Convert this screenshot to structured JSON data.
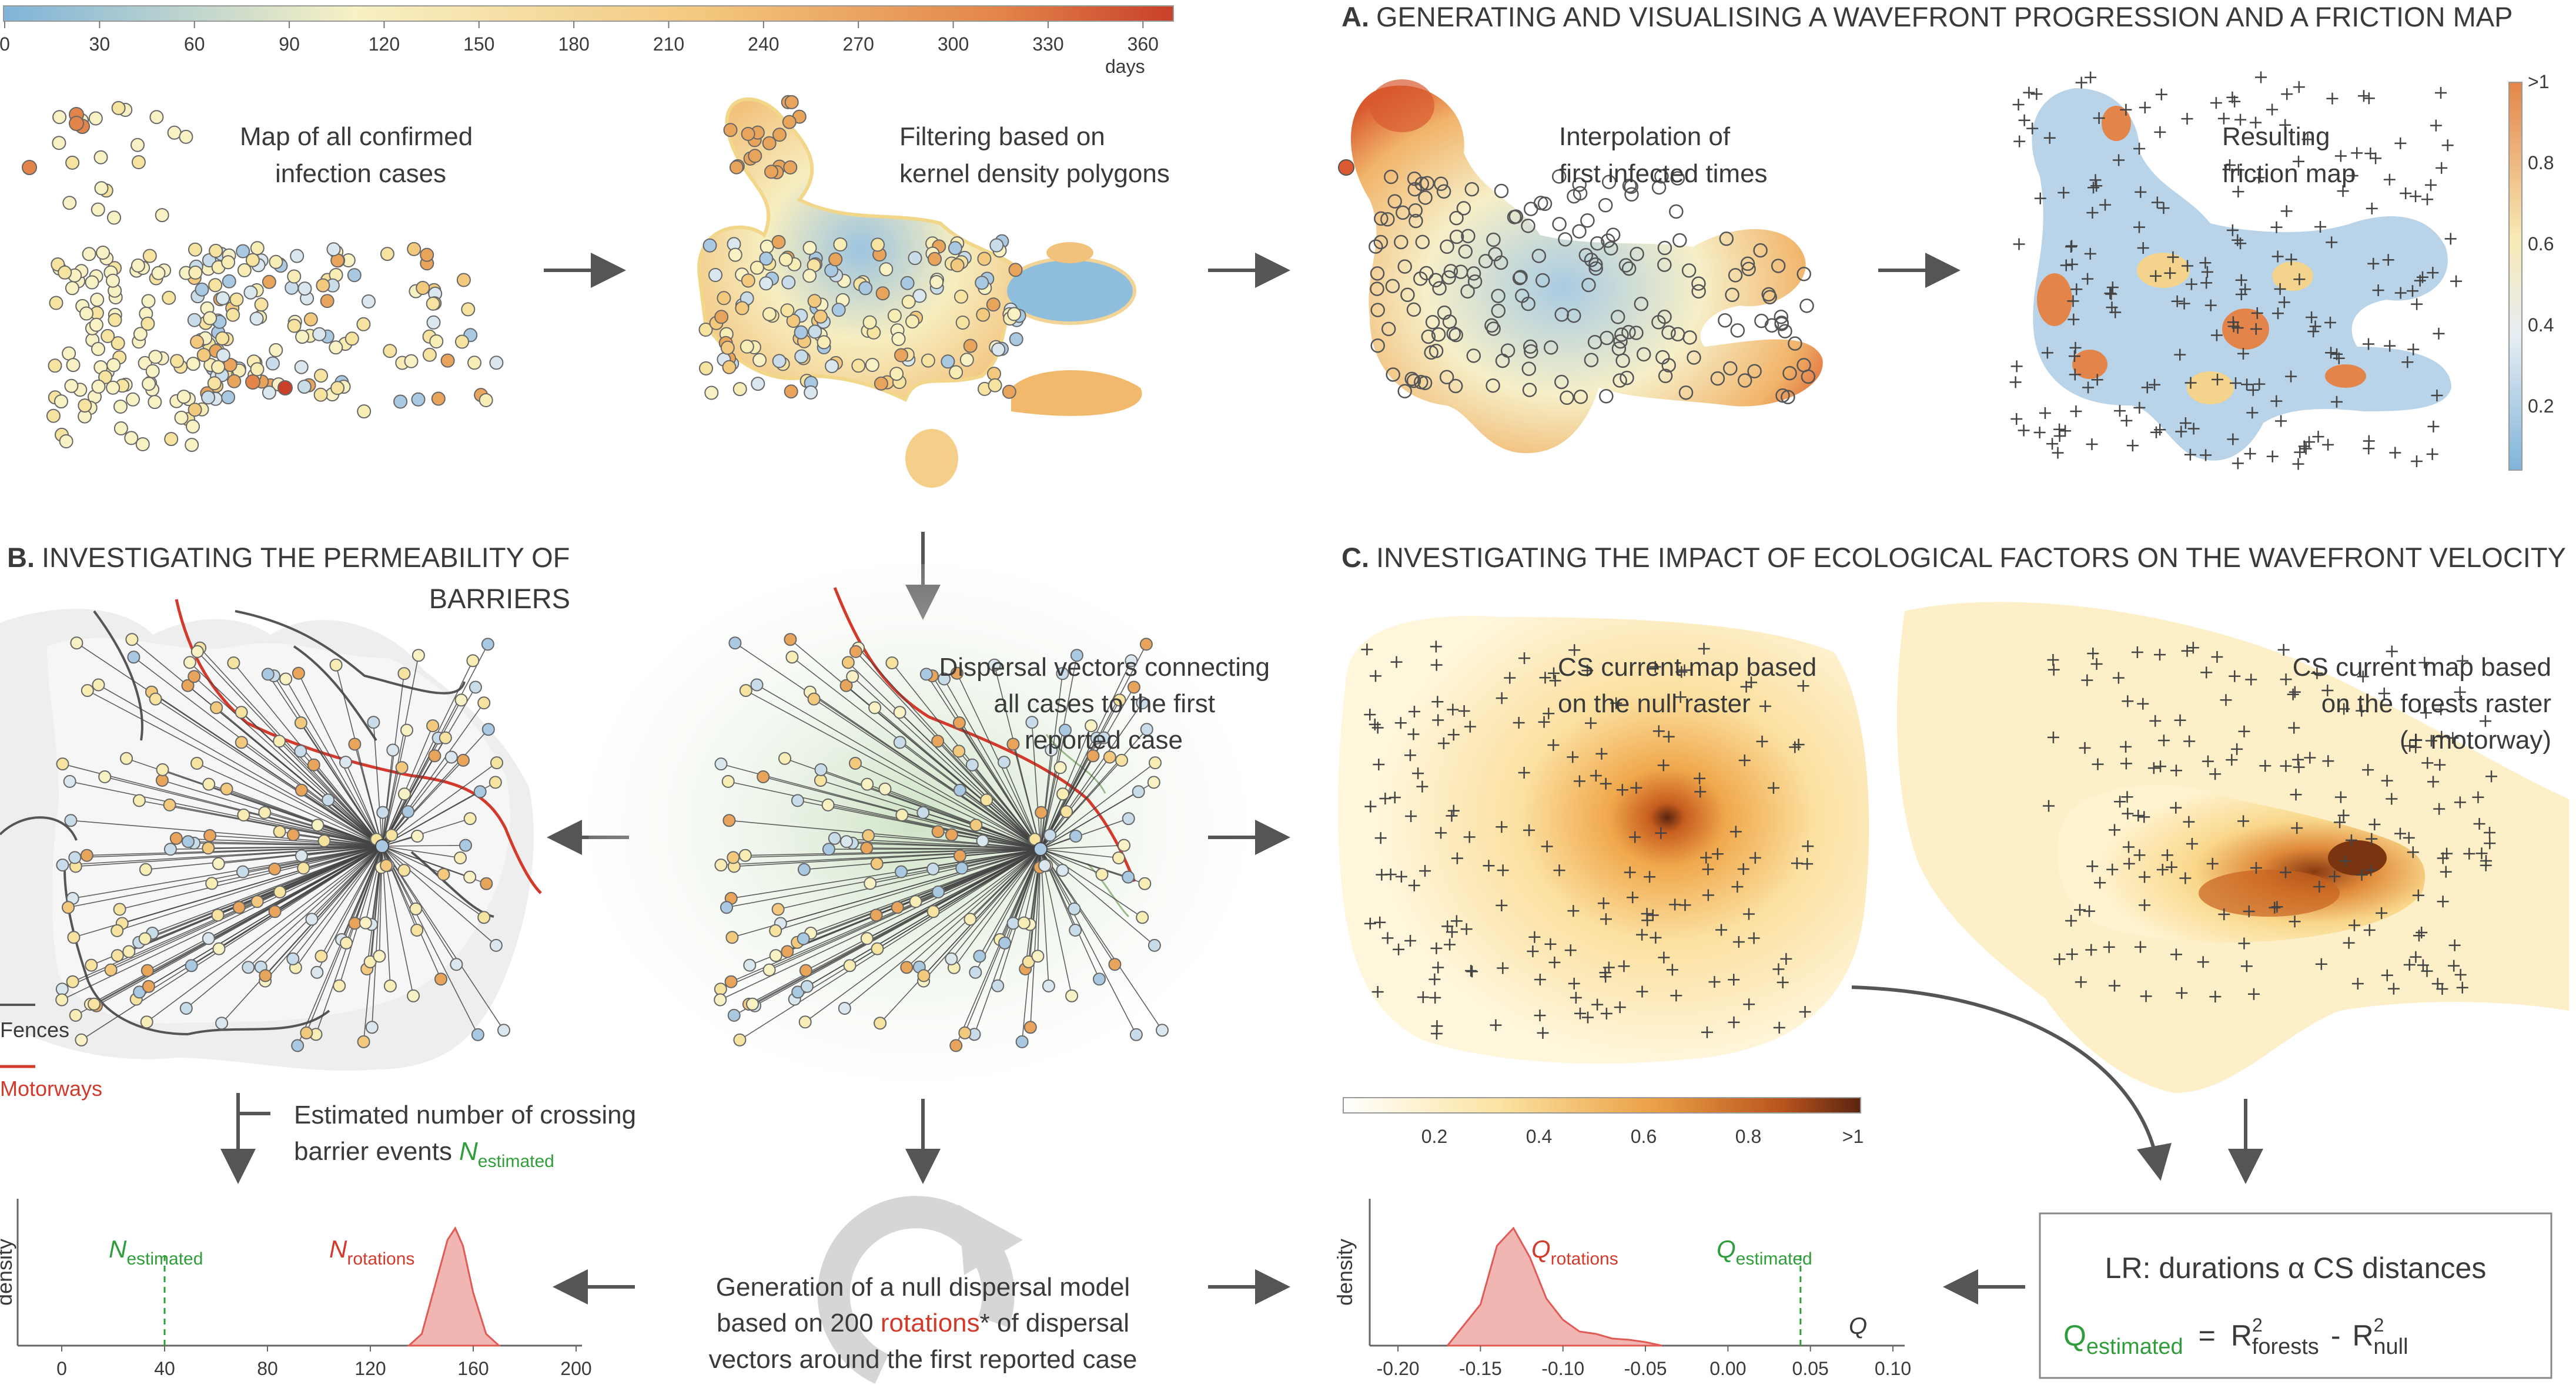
{
  "colorbar_days": {
    "ticks": [
      "0",
      "30",
      "60",
      "90",
      "120",
      "150",
      "180",
      "210",
      "240",
      "270",
      "300",
      "330",
      "360"
    ],
    "unit": "days",
    "colors": {
      "low": "#7fb4d9",
      "mid": "#f7f1c4",
      "high": "#c8402a"
    }
  },
  "panelA": {
    "title_prefix": "A.",
    "title": "GENERATING AND VISUALISING A WAVEFRONT PROGRESSION AND A FRICTION MAP",
    "map1_label": [
      "Map of all confirmed",
      "infection cases"
    ],
    "map2_label": [
      "Filtering based on",
      "kernel density polygons"
    ],
    "map3_label": [
      "Interpolation of",
      "first infected times"
    ],
    "map4_label": [
      "Resulting",
      "friction map"
    ],
    "friction_ticks": [
      ">1",
      "0.8",
      "0.6",
      "0.4",
      "0.2"
    ]
  },
  "panelB": {
    "title_prefix": "B.",
    "title_line1": "INVESTIGATING THE PERMEABILITY OF",
    "title_line2": "BARRIERS",
    "legend_fences": "Fences",
    "legend_motorways": "Motorways",
    "dispersal_label": [
      "Dispersal vectors connecting",
      "all cases to the first",
      "reported case"
    ],
    "crossing_label_line1": "Estimated number of crossing",
    "crossing_label_line2": "barrier events",
    "n_symbol": "N",
    "n_estimated_sub": "estimated",
    "n_rotations_sub": "rotations",
    "density_axis": "density",
    "chart_x_ticks": [
      "0",
      "40",
      "80",
      "120",
      "160",
      "200"
    ],
    "null_model_line1": "Generation of a null dispersal model",
    "null_model_line2_a": "based on 200 ",
    "null_model_line2_b": "rotations",
    "null_model_line2_c": "* of dispersal",
    "null_model_line3": "vectors around the first reported case"
  },
  "panelC": {
    "title_prefix": "C.",
    "title": "INVESTIGATING THE IMPACT OF ECOLOGICAL FACTORS ON THE WAVEFRONT VELOCITY",
    "cs_null_label": [
      "CS current map based",
      "on the null raster"
    ],
    "cs_forest_label": [
      "CS current map based",
      "on the forests raster",
      "(+ motorway)"
    ],
    "cs_ticks": [
      "0.2",
      "0.4",
      "0.6",
      "0.8",
      ">1"
    ],
    "q_symbol": "Q",
    "q_rotations_sub": "rotations",
    "q_estimated_sub": "estimated",
    "q_axis": "Q",
    "density_axis": "density",
    "q_x_ticks": [
      "-0.20",
      "-0.15",
      "-0.10",
      "-0.05",
      "0.00",
      "0.05",
      "0.10"
    ],
    "lr_prefix": "LR:  durations α CS distances",
    "eq_equals": "=",
    "eq_r": "R",
    "eq_sq": "2",
    "eq_forests": "forests",
    "eq_minus": "-",
    "eq_null": "null"
  },
  "chart_data": [
    {
      "type": "area",
      "series": [
        {
          "name": "Nrotations",
          "x": [
            135,
            140,
            145,
            150,
            153,
            156,
            160,
            165,
            170
          ],
          "y": [
            0.0,
            0.1,
            0.5,
            0.9,
            1.0,
            0.85,
            0.45,
            0.1,
            0.0
          ]
        }
      ],
      "xlabel": "",
      "ylabel": "density",
      "xlim": [
        0,
        200
      ],
      "annotations": [
        {
          "label": "Nestimated",
          "x": 40
        }
      ]
    },
    {
      "type": "area",
      "series": [
        {
          "name": "Qrotations",
          "x": [
            -0.17,
            -0.15,
            -0.14,
            -0.13,
            -0.12,
            -0.11,
            -0.1,
            -0.09,
            -0.08,
            -0.07,
            -0.06,
            -0.05,
            -0.04
          ],
          "y": [
            0.0,
            0.35,
            0.85,
            1.0,
            0.75,
            0.4,
            0.22,
            0.12,
            0.1,
            0.06,
            0.05,
            0.03,
            0.0
          ]
        }
      ],
      "xlabel": "Q",
      "ylabel": "density",
      "xlim": [
        -0.21,
        0.1
      ],
      "annotations": [
        {
          "label": "Qestimated",
          "x": 0.044
        }
      ]
    }
  ]
}
